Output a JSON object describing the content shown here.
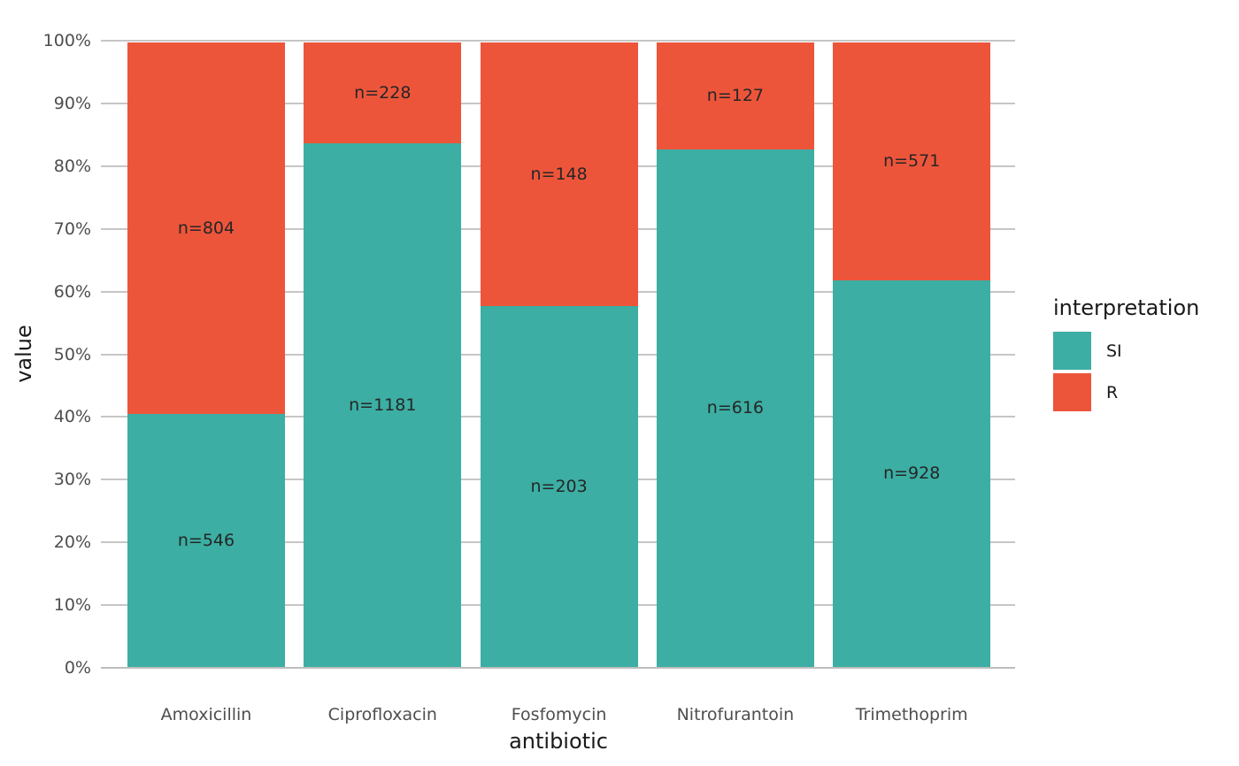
{
  "chart_data": {
    "type": "bar",
    "variant": "stacked-percent",
    "title": "",
    "xlabel": "antibiotic",
    "ylabel": "value",
    "ylim": [
      0,
      100
    ],
    "grid": "horizontal-major-only",
    "legend_position": "right",
    "legend_title": "interpretation",
    "categories": [
      "Amoxicillin",
      "Ciprofloxacin",
      "Fosfomycin",
      "Nitrofurantoin",
      "Trimethoprim"
    ],
    "series": [
      {
        "name": "SI",
        "color": "#3CAEA3",
        "values": [
          546,
          1181,
          203,
          616,
          928
        ],
        "labels": [
          "n=546",
          "n=1181",
          "n=203",
          "n=616",
          "n=928"
        ]
      },
      {
        "name": "R",
        "color": "#ED553B",
        "values": [
          804,
          228,
          148,
          127,
          571
        ],
        "labels": [
          "n=804",
          "n=228",
          "n=148",
          "n=127",
          "n=571"
        ]
      }
    ],
    "si_percent_by_category": [
      40.4,
      83.8,
      57.8,
      82.9,
      61.9
    ],
    "y_ticks": [
      "0%",
      "10%",
      "20%",
      "30%",
      "40%",
      "50%",
      "60%",
      "70%",
      "80%",
      "90%",
      "100%"
    ]
  },
  "colors": {
    "si": "#3CAEA3",
    "r": "#ED553B",
    "gridline": "#C6C6C6",
    "axis_text": "#4E4E4E",
    "title_text": "#1A1A1A",
    "background": "#FFFFFF"
  }
}
